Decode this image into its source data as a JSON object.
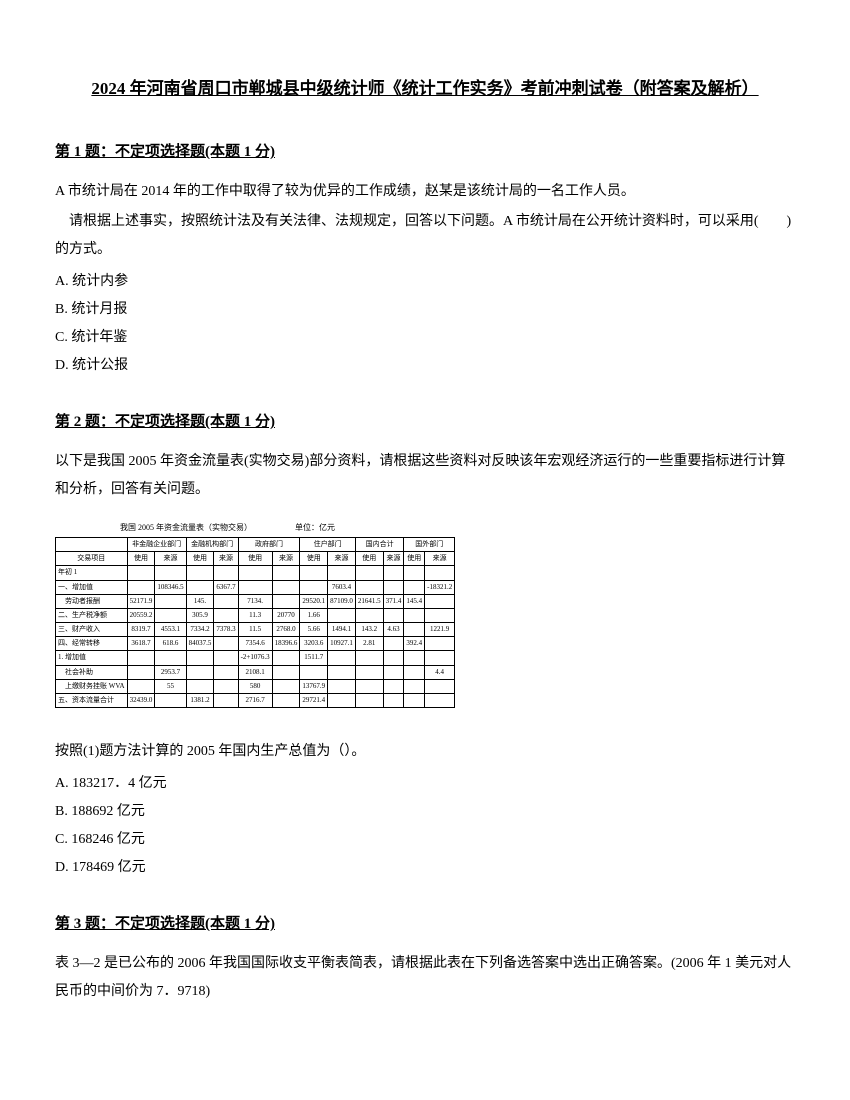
{
  "title": "2024 年河南省周口市郸城县中级统计师《统计工作实务》考前冲刺试卷（附答案及解析）",
  "q1": {
    "header": "第 1 题：不定项选择题(本题 1 分)",
    "p1": "A 市统计局在 2014 年的工作中取得了较为优异的工作成绩，赵某是该统计局的一名工作人员。",
    "p2": "请根据上述事实，按照统计法及有关法律、法规规定，回答以下问题。A 市统计局在公开统计资料时，可以采用(　　)的方式。",
    "optA": "A. 统计内参",
    "optB": "B. 统计月报",
    "optC": "C. 统计年鉴",
    "optD": "D. 统计公报"
  },
  "q2": {
    "header": "第 2 题：不定项选择题(本题 1 分)",
    "p1": "以下是我国 2005 年资金流量表(实物交易)部分资料，请根据这些资料对反映该年宏观经济运行的一些重要指标进行计算和分析，回答有关问题。",
    "tableTitle": "我国 2005 年资金流量表（实物交易）",
    "tableUnit": "单位：亿元",
    "p2": "按照(1)题方法计算的 2005 年国内生产总值为（）。",
    "optA": "A. 183217．4 亿元",
    "optB": "B. 188692 亿元",
    "optC": "C. 168246 亿元",
    "optD": "D. 178469 亿元",
    "table": {
      "headers": [
        "",
        "非金融企业部门",
        "金融机构部门",
        "政府部门",
        "住户部门",
        "国内合计",
        "国外部门"
      ],
      "subheaders": [
        "交易项目",
        "使用",
        "来源",
        "使用",
        "来源",
        "使用",
        "来源",
        "使用",
        "来源",
        "使用",
        "来源",
        "使用",
        "来源"
      ],
      "rows": [
        [
          "年初 1",
          "",
          "",
          "",
          "",
          "",
          "",
          "",
          "",
          "",
          "",
          "",
          ""
        ],
        [
          "一、增加值",
          "",
          "108346.5",
          "",
          "6367.7",
          "",
          "",
          "",
          "7603.4",
          "",
          "",
          "",
          "-18321.2"
        ],
        [
          "　劳动者报酬",
          "52171.9",
          "",
          "145.",
          "",
          "7134.",
          "",
          "29520.1",
          "87109.0",
          "21641.5",
          "371.4",
          "145.4",
          ""
        ],
        [
          "二、生产税净额",
          "20559.2",
          "",
          "305.9",
          "",
          "11.3",
          "20770",
          "1.66",
          "",
          "",
          "",
          "",
          ""
        ],
        [
          "三、财产收入",
          "8319.7",
          "4553.1",
          "7334.2",
          "7378.3",
          "11.5",
          "2768.0",
          "5.66",
          "1494.1",
          "143.2",
          "4.63",
          "",
          "1221.9"
        ],
        [
          "四、经常转移",
          "3618.7",
          "618.6",
          "84037.5",
          "",
          "7354.6",
          "18396.6",
          "3203.6",
          "10927.1",
          "2.81",
          "",
          "392.4",
          ""
        ],
        [
          "1. 增加值",
          "",
          "",
          "",
          "",
          "-2+1076.3",
          "",
          "1511.7",
          "",
          "",
          "",
          "",
          ""
        ],
        [
          "　社会补助",
          "",
          "2953.7",
          "",
          "",
          "2108.1",
          "",
          "",
          "",
          "",
          "",
          "",
          "4.4"
        ],
        [
          "　上缴财务挂账 WVA",
          "",
          "55",
          "",
          "",
          "580",
          "",
          "13767.9",
          "",
          "",
          "",
          "",
          ""
        ],
        [
          "五、资本流量合计",
          "32439.0",
          "",
          "1381.2",
          "",
          "2716.7",
          "",
          "29721.4",
          "",
          "",
          "",
          "",
          ""
        ]
      ]
    }
  },
  "q3": {
    "header": "第 3 题：不定项选择题(本题 1 分)",
    "p1": "表 3—2 是已公布的 2006 年我国国际收支平衡表简表，请根据此表在下列备选答案中选出正确答案。(2006 年 1 美元对人民币的中间价为 7．9718)"
  }
}
